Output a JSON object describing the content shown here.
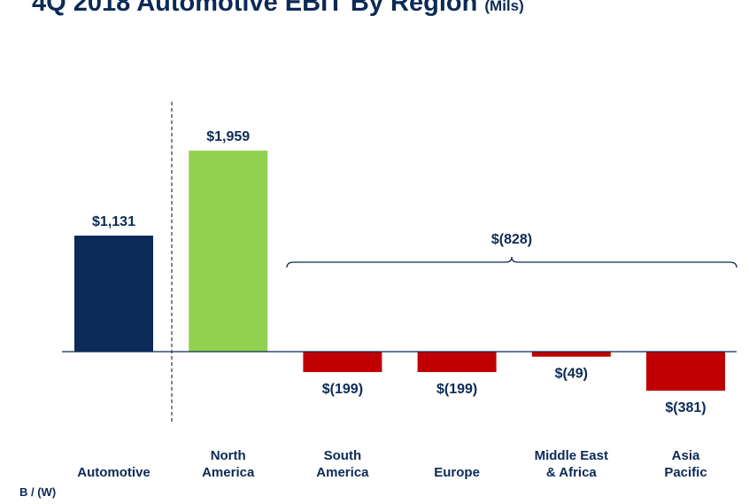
{
  "title": {
    "main": "4Q 2018 Automotive EBIT By Region",
    "units": "(Mils)"
  },
  "footer_label": "B / (W)",
  "colors": {
    "text": "#0b2a57",
    "automotive": "#0b2a57",
    "positive": "#92d050",
    "negative": "#c00000",
    "axis": "#0b2a57"
  },
  "chart_data": {
    "type": "bar",
    "categories": [
      "Automotive",
      "North America",
      "South America",
      "Europe",
      "Middle East & Africa",
      "Asia Pacific"
    ],
    "category_lines": [
      [
        "Automotive"
      ],
      [
        "North",
        "America"
      ],
      [
        "South",
        "America"
      ],
      [
        "Europe"
      ],
      [
        "Middle East",
        "& Africa"
      ],
      [
        "Asia",
        "Pacific"
      ]
    ],
    "values": [
      1131,
      1959,
      -199,
      -199,
      -49,
      -381
    ],
    "data_labels": [
      "$1,131",
      "$1,959",
      "$(199)",
      "$(199)",
      "$(49)",
      "$(381)"
    ],
    "bar_colors": [
      "#0b2a57",
      "#92d050",
      "#c00000",
      "#c00000",
      "#c00000",
      "#c00000"
    ],
    "bracket": {
      "label": "$(828)",
      "from_category": 2,
      "to_category": 5
    },
    "separator_after_category": 0,
    "ylim": [
      -700,
      2300
    ],
    "xlabel": "",
    "ylabel": ""
  }
}
